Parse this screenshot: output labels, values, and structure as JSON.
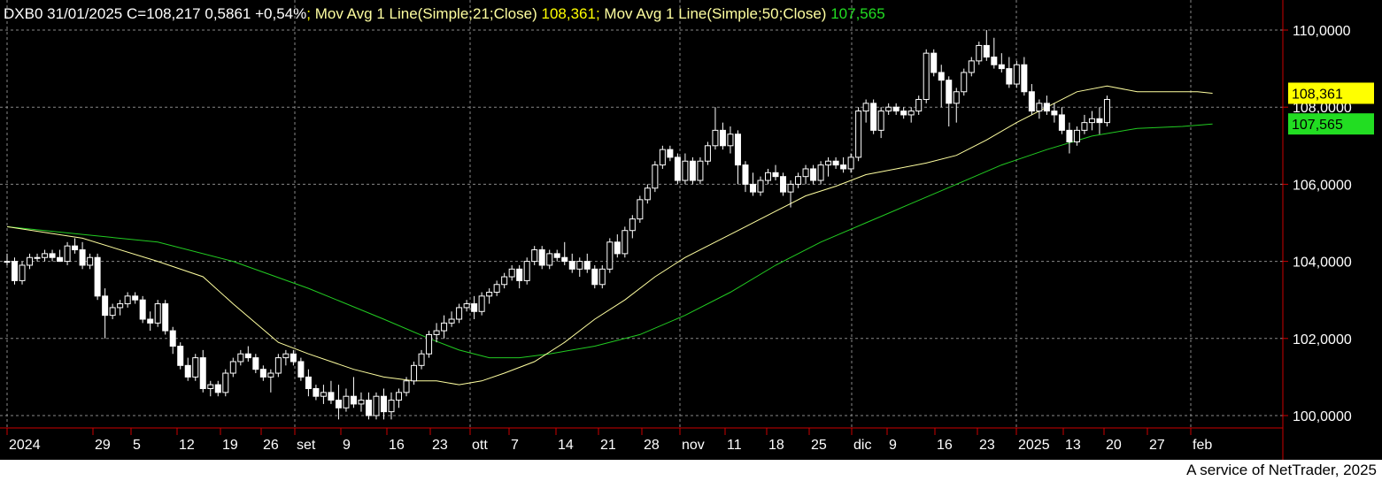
{
  "header": {
    "symbol": "DXB0",
    "date": "31/01/2025",
    "close_text": "C=108,217",
    "change": "0,5861",
    "change_pct": "+0,54%",
    "separator": ";",
    "ma21_label": "Mov Avg 1 Line(Simple;21;Close)",
    "ma21_value": "108,361",
    "ma50_label": "Mov Avg 1 Line(Simple;50;Close)",
    "ma50_value": "107,565"
  },
  "footer": {
    "text": "A service of NetTrader, 2025"
  },
  "colors": {
    "background": "#000000",
    "grid": "#888888",
    "axis": "#cc0000",
    "candle_up": "#ffffff",
    "candle_down": "#ffffff",
    "ma21": "#ffffa0",
    "ma50": "#22cc22",
    "ma21_label": "#ffff00",
    "ma50_label": "#22dd22"
  },
  "chart_data": {
    "type": "candlestick",
    "ylim": [
      99.6,
      110.3
    ],
    "y_ticks": [
      {
        "value": 100,
        "label": "100,0000"
      },
      {
        "value": 102,
        "label": "102,0000"
      },
      {
        "value": 104,
        "label": "104,0000"
      },
      {
        "value": 106,
        "label": "106,0000"
      },
      {
        "value": 108,
        "label": "108,0000"
      },
      {
        "value": 110,
        "label": "110,0000"
      }
    ],
    "x_ticks": [
      "2024",
      "29",
      "5",
      "12",
      "19",
      "26",
      "set",
      "9",
      "16",
      "23",
      "ott",
      "7",
      "14",
      "21",
      "28",
      "nov",
      "11",
      "18",
      "25",
      "dic",
      "9",
      "16",
      "23",
      "2025",
      "13",
      "20",
      "27",
      "feb"
    ],
    "grid": true,
    "last_values": {
      "ma21": "108,361",
      "ma50": "107,565"
    },
    "candles": [
      {
        "o": 104.0,
        "h": 104.2,
        "l": 103.9,
        "c": 104.0
      },
      {
        "o": 104.0,
        "h": 104.1,
        "l": 103.4,
        "c": 103.5
      },
      {
        "o": 103.5,
        "h": 104.0,
        "l": 103.4,
        "c": 103.9
      },
      {
        "o": 103.9,
        "h": 104.2,
        "l": 103.8,
        "c": 104.1
      },
      {
        "o": 104.1,
        "h": 104.2,
        "l": 104.0,
        "c": 104.1
      },
      {
        "o": 104.1,
        "h": 104.3,
        "l": 104.0,
        "c": 104.2
      },
      {
        "o": 104.2,
        "h": 104.3,
        "l": 104.0,
        "c": 104.1
      },
      {
        "o": 104.1,
        "h": 104.3,
        "l": 104.0,
        "c": 104.0
      },
      {
        "o": 104.0,
        "h": 104.5,
        "l": 103.9,
        "c": 104.4
      },
      {
        "o": 104.4,
        "h": 104.6,
        "l": 104.2,
        "c": 104.3
      },
      {
        "o": 104.3,
        "h": 104.5,
        "l": 103.8,
        "c": 103.9
      },
      {
        "o": 103.9,
        "h": 104.2,
        "l": 103.8,
        "c": 104.1
      },
      {
        "o": 104.1,
        "h": 104.2,
        "l": 103.0,
        "c": 103.1
      },
      {
        "o": 103.1,
        "h": 103.3,
        "l": 102.0,
        "c": 102.6
      },
      {
        "o": 102.6,
        "h": 102.9,
        "l": 102.5,
        "c": 102.8
      },
      {
        "o": 102.8,
        "h": 103.0,
        "l": 102.6,
        "c": 102.9
      },
      {
        "o": 102.9,
        "h": 103.2,
        "l": 102.8,
        "c": 103.1
      },
      {
        "o": 103.1,
        "h": 103.2,
        "l": 102.9,
        "c": 103.0
      },
      {
        "o": 103.0,
        "h": 103.1,
        "l": 102.4,
        "c": 102.5
      },
      {
        "o": 102.5,
        "h": 102.7,
        "l": 102.2,
        "c": 102.4
      },
      {
        "o": 102.4,
        "h": 103.0,
        "l": 102.3,
        "c": 102.9
      },
      {
        "o": 102.9,
        "h": 103.0,
        "l": 102.1,
        "c": 102.2
      },
      {
        "o": 102.2,
        "h": 102.3,
        "l": 101.6,
        "c": 101.8
      },
      {
        "o": 101.8,
        "h": 101.9,
        "l": 101.2,
        "c": 101.3
      },
      {
        "o": 101.3,
        "h": 101.5,
        "l": 100.9,
        "c": 101.0
      },
      {
        "o": 101.0,
        "h": 101.6,
        "l": 100.9,
        "c": 101.5
      },
      {
        "o": 101.5,
        "h": 101.7,
        "l": 100.6,
        "c": 100.7
      },
      {
        "o": 100.7,
        "h": 100.9,
        "l": 100.5,
        "c": 100.8
      },
      {
        "o": 100.8,
        "h": 100.9,
        "l": 100.5,
        "c": 100.6
      },
      {
        "o": 100.6,
        "h": 101.2,
        "l": 100.5,
        "c": 101.1
      },
      {
        "o": 101.1,
        "h": 101.5,
        "l": 101.0,
        "c": 101.4
      },
      {
        "o": 101.4,
        "h": 101.7,
        "l": 101.3,
        "c": 101.6
      },
      {
        "o": 101.6,
        "h": 101.8,
        "l": 101.4,
        "c": 101.5
      },
      {
        "o": 101.5,
        "h": 101.6,
        "l": 101.1,
        "c": 101.2
      },
      {
        "o": 101.2,
        "h": 101.3,
        "l": 100.9,
        "c": 101.0
      },
      {
        "o": 101.0,
        "h": 101.2,
        "l": 100.6,
        "c": 101.1
      },
      {
        "o": 101.1,
        "h": 101.6,
        "l": 101.0,
        "c": 101.5
      },
      {
        "o": 101.5,
        "h": 101.7,
        "l": 101.3,
        "c": 101.6
      },
      {
        "o": 101.6,
        "h": 101.7,
        "l": 101.3,
        "c": 101.4
      },
      {
        "o": 101.4,
        "h": 101.5,
        "l": 100.9,
        "c": 101.0
      },
      {
        "o": 101.0,
        "h": 101.2,
        "l": 100.5,
        "c": 100.7
      },
      {
        "o": 100.7,
        "h": 100.8,
        "l": 100.4,
        "c": 100.5
      },
      {
        "o": 100.5,
        "h": 100.8,
        "l": 100.3,
        "c": 100.6
      },
      {
        "o": 100.6,
        "h": 100.9,
        "l": 100.3,
        "c": 100.4
      },
      {
        "o": 100.4,
        "h": 100.8,
        "l": 99.9,
        "c": 100.2
      },
      {
        "o": 100.2,
        "h": 100.7,
        "l": 100.1,
        "c": 100.5
      },
      {
        "o": 100.5,
        "h": 101.0,
        "l": 100.2,
        "c": 100.3
      },
      {
        "o": 100.3,
        "h": 100.6,
        "l": 100.1,
        "c": 100.4
      },
      {
        "o": 100.4,
        "h": 100.6,
        "l": 99.9,
        "c": 100.0
      },
      {
        "o": 100.0,
        "h": 100.6,
        "l": 99.9,
        "c": 100.5
      },
      {
        "o": 100.5,
        "h": 100.7,
        "l": 99.9,
        "c": 100.1
      },
      {
        "o": 100.1,
        "h": 100.6,
        "l": 99.9,
        "c": 100.4
      },
      {
        "o": 100.4,
        "h": 100.7,
        "l": 100.2,
        "c": 100.6
      },
      {
        "o": 100.6,
        "h": 101.0,
        "l": 100.5,
        "c": 100.9
      },
      {
        "o": 100.9,
        "h": 101.4,
        "l": 100.8,
        "c": 101.3
      },
      {
        "o": 101.3,
        "h": 101.7,
        "l": 101.2,
        "c": 101.6
      },
      {
        "o": 101.6,
        "h": 102.2,
        "l": 101.5,
        "c": 102.1
      },
      {
        "o": 102.1,
        "h": 102.4,
        "l": 101.9,
        "c": 102.2
      },
      {
        "o": 102.2,
        "h": 102.6,
        "l": 102.0,
        "c": 102.4
      },
      {
        "o": 102.4,
        "h": 102.7,
        "l": 102.3,
        "c": 102.5
      },
      {
        "o": 102.5,
        "h": 102.9,
        "l": 102.4,
        "c": 102.8
      },
      {
        "o": 102.8,
        "h": 103.0,
        "l": 102.7,
        "c": 102.9
      },
      {
        "o": 102.9,
        "h": 103.1,
        "l": 102.5,
        "c": 102.7
      },
      {
        "o": 102.7,
        "h": 103.2,
        "l": 102.6,
        "c": 103.1
      },
      {
        "o": 103.1,
        "h": 103.3,
        "l": 102.9,
        "c": 103.2
      },
      {
        "o": 103.2,
        "h": 103.5,
        "l": 103.1,
        "c": 103.4
      },
      {
        "o": 103.4,
        "h": 103.7,
        "l": 103.3,
        "c": 103.6
      },
      {
        "o": 103.6,
        "h": 103.9,
        "l": 103.5,
        "c": 103.8
      },
      {
        "o": 103.8,
        "h": 103.9,
        "l": 103.3,
        "c": 103.5
      },
      {
        "o": 103.5,
        "h": 104.1,
        "l": 103.4,
        "c": 104.0
      },
      {
        "o": 104.0,
        "h": 104.4,
        "l": 103.9,
        "c": 104.3
      },
      {
        "o": 104.3,
        "h": 104.4,
        "l": 103.8,
        "c": 103.9
      },
      {
        "o": 103.9,
        "h": 104.3,
        "l": 103.8,
        "c": 104.2
      },
      {
        "o": 104.2,
        "h": 104.3,
        "l": 104.0,
        "c": 104.1
      },
      {
        "o": 104.1,
        "h": 104.5,
        "l": 103.9,
        "c": 104.0
      },
      {
        "o": 104.0,
        "h": 104.2,
        "l": 103.7,
        "c": 103.8
      },
      {
        "o": 103.8,
        "h": 104.1,
        "l": 103.6,
        "c": 104.0
      },
      {
        "o": 104.0,
        "h": 104.2,
        "l": 103.7,
        "c": 103.8
      },
      {
        "o": 103.8,
        "h": 103.9,
        "l": 103.3,
        "c": 103.4
      },
      {
        "o": 103.4,
        "h": 103.9,
        "l": 103.3,
        "c": 103.8
      },
      {
        "o": 103.8,
        "h": 104.6,
        "l": 103.7,
        "c": 104.5
      },
      {
        "o": 104.5,
        "h": 104.7,
        "l": 104.1,
        "c": 104.2
      },
      {
        "o": 104.2,
        "h": 104.9,
        "l": 104.1,
        "c": 104.8
      },
      {
        "o": 104.8,
        "h": 105.2,
        "l": 104.6,
        "c": 105.1
      },
      {
        "o": 105.1,
        "h": 105.7,
        "l": 105.0,
        "c": 105.6
      },
      {
        "o": 105.6,
        "h": 106.0,
        "l": 105.5,
        "c": 105.9
      },
      {
        "o": 105.9,
        "h": 106.6,
        "l": 105.8,
        "c": 106.5
      },
      {
        "o": 106.5,
        "h": 107.0,
        "l": 106.4,
        "c": 106.9
      },
      {
        "o": 106.9,
        "h": 107.0,
        "l": 106.6,
        "c": 106.7
      },
      {
        "o": 106.7,
        "h": 106.8,
        "l": 106.0,
        "c": 106.1
      },
      {
        "o": 106.1,
        "h": 106.8,
        "l": 106.0,
        "c": 106.6
      },
      {
        "o": 106.6,
        "h": 106.7,
        "l": 106.0,
        "c": 106.1
      },
      {
        "o": 106.1,
        "h": 106.7,
        "l": 106.0,
        "c": 106.6
      },
      {
        "o": 106.6,
        "h": 107.1,
        "l": 106.5,
        "c": 107.0
      },
      {
        "o": 107.0,
        "h": 108.0,
        "l": 106.9,
        "c": 107.4
      },
      {
        "o": 107.4,
        "h": 107.6,
        "l": 106.9,
        "c": 107.0
      },
      {
        "o": 107.0,
        "h": 107.5,
        "l": 106.8,
        "c": 107.3
      },
      {
        "o": 107.3,
        "h": 107.4,
        "l": 106.0,
        "c": 106.5
      },
      {
        "o": 106.5,
        "h": 106.6,
        "l": 105.8,
        "c": 106.0
      },
      {
        "o": 106.0,
        "h": 106.3,
        "l": 105.7,
        "c": 105.8
      },
      {
        "o": 105.8,
        "h": 106.2,
        "l": 105.7,
        "c": 106.1
      },
      {
        "o": 106.1,
        "h": 106.4,
        "l": 106.0,
        "c": 106.3
      },
      {
        "o": 106.3,
        "h": 106.5,
        "l": 106.1,
        "c": 106.2
      },
      {
        "o": 106.2,
        "h": 106.3,
        "l": 105.7,
        "c": 105.8
      },
      {
        "o": 105.8,
        "h": 106.1,
        "l": 105.4,
        "c": 106.0
      },
      {
        "o": 106.0,
        "h": 106.3,
        "l": 105.9,
        "c": 106.2
      },
      {
        "o": 106.2,
        "h": 106.5,
        "l": 106.0,
        "c": 106.4
      },
      {
        "o": 106.4,
        "h": 106.5,
        "l": 106.0,
        "c": 106.1
      },
      {
        "o": 106.1,
        "h": 106.6,
        "l": 106.0,
        "c": 106.5
      },
      {
        "o": 106.5,
        "h": 106.7,
        "l": 106.2,
        "c": 106.6
      },
      {
        "o": 106.6,
        "h": 106.7,
        "l": 106.4,
        "c": 106.5
      },
      {
        "o": 106.5,
        "h": 106.7,
        "l": 106.3,
        "c": 106.4
      },
      {
        "o": 106.4,
        "h": 106.8,
        "l": 106.3,
        "c": 106.7
      },
      {
        "o": 106.7,
        "h": 108.0,
        "l": 106.6,
        "c": 107.9
      },
      {
        "o": 107.9,
        "h": 108.2,
        "l": 107.6,
        "c": 108.1
      },
      {
        "o": 108.1,
        "h": 108.2,
        "l": 107.3,
        "c": 107.4
      },
      {
        "o": 107.4,
        "h": 108.0,
        "l": 107.2,
        "c": 107.9
      },
      {
        "o": 107.9,
        "h": 108.1,
        "l": 107.8,
        "c": 108.0
      },
      {
        "o": 108.0,
        "h": 108.1,
        "l": 107.8,
        "c": 107.9
      },
      {
        "o": 107.9,
        "h": 108.0,
        "l": 107.7,
        "c": 107.8
      },
      {
        "o": 107.8,
        "h": 108.0,
        "l": 107.6,
        "c": 107.9
      },
      {
        "o": 107.9,
        "h": 108.3,
        "l": 107.8,
        "c": 108.2
      },
      {
        "o": 108.2,
        "h": 109.5,
        "l": 108.1,
        "c": 109.4
      },
      {
        "o": 109.4,
        "h": 109.5,
        "l": 108.8,
        "c": 108.9
      },
      {
        "o": 108.9,
        "h": 109.1,
        "l": 108.0,
        "c": 108.7
      },
      {
        "o": 108.7,
        "h": 108.8,
        "l": 107.5,
        "c": 108.1
      },
      {
        "o": 108.1,
        "h": 108.5,
        "l": 107.6,
        "c": 108.4
      },
      {
        "o": 108.4,
        "h": 109.0,
        "l": 108.3,
        "c": 108.9
      },
      {
        "o": 108.9,
        "h": 109.3,
        "l": 108.8,
        "c": 109.2
      },
      {
        "o": 109.2,
        "h": 109.7,
        "l": 109.1,
        "c": 109.6
      },
      {
        "o": 109.6,
        "h": 110.0,
        "l": 109.2,
        "c": 109.3
      },
      {
        "o": 109.3,
        "h": 109.8,
        "l": 109.0,
        "c": 109.1
      },
      {
        "o": 109.1,
        "h": 109.4,
        "l": 108.9,
        "c": 109.0
      },
      {
        "o": 109.0,
        "h": 109.3,
        "l": 108.5,
        "c": 108.6
      },
      {
        "o": 108.6,
        "h": 109.2,
        "l": 108.5,
        "c": 109.1
      },
      {
        "o": 109.1,
        "h": 109.3,
        "l": 108.3,
        "c": 108.4
      },
      {
        "o": 108.4,
        "h": 108.6,
        "l": 107.8,
        "c": 107.9
      },
      {
        "o": 107.9,
        "h": 108.2,
        "l": 107.7,
        "c": 108.1
      },
      {
        "o": 108.1,
        "h": 108.3,
        "l": 107.8,
        "c": 107.9
      },
      {
        "o": 107.9,
        "h": 108.1,
        "l": 107.6,
        "c": 107.8
      },
      {
        "o": 107.8,
        "h": 108.0,
        "l": 107.3,
        "c": 107.4
      },
      {
        "o": 107.4,
        "h": 107.6,
        "l": 106.8,
        "c": 107.1
      },
      {
        "o": 107.1,
        "h": 107.5,
        "l": 107.0,
        "c": 107.4
      },
      {
        "o": 107.4,
        "h": 107.8,
        "l": 107.3,
        "c": 107.6
      },
      {
        "o": 107.6,
        "h": 107.9,
        "l": 107.4,
        "c": 107.7
      },
      {
        "o": 107.7,
        "h": 108.0,
        "l": 107.3,
        "c": 107.6
      },
      {
        "o": 107.6,
        "h": 108.3,
        "l": 107.5,
        "c": 108.2
      }
    ],
    "ma21": [
      [
        0,
        104.9
      ],
      [
        10,
        104.6
      ],
      [
        20,
        104.0
      ],
      [
        26,
        103.6
      ],
      [
        30,
        102.9
      ],
      [
        36,
        101.9
      ],
      [
        40,
        101.6
      ],
      [
        46,
        101.2
      ],
      [
        50,
        101.0
      ],
      [
        54,
        100.9
      ],
      [
        57,
        100.9
      ],
      [
        60,
        100.8
      ],
      [
        63,
        100.9
      ],
      [
        66,
        101.1
      ],
      [
        70,
        101.4
      ],
      [
        74,
        101.9
      ],
      [
        78,
        102.5
      ],
      [
        82,
        103.0
      ],
      [
        86,
        103.6
      ],
      [
        90,
        104.1
      ],
      [
        94,
        104.5
      ],
      [
        98,
        104.9
      ],
      [
        102,
        105.3
      ],
      [
        106,
        105.7
      ],
      [
        110,
        105.95
      ],
      [
        114,
        106.25
      ],
      [
        118,
        106.4
      ],
      [
        122,
        106.55
      ],
      [
        126,
        106.75
      ],
      [
        130,
        107.15
      ],
      [
        134,
        107.6
      ],
      [
        138,
        108.0
      ],
      [
        142,
        108.4
      ],
      [
        146,
        108.55
      ],
      [
        150,
        108.4
      ],
      [
        154,
        108.4
      ],
      [
        158,
        108.4
      ],
      [
        160,
        108.36
      ]
    ],
    "ma50": [
      [
        0,
        104.9
      ],
      [
        10,
        104.7
      ],
      [
        20,
        104.5
      ],
      [
        30,
        104.0
      ],
      [
        40,
        103.3
      ],
      [
        50,
        102.5
      ],
      [
        56,
        102.0
      ],
      [
        60,
        101.7
      ],
      [
        64,
        101.5
      ],
      [
        68,
        101.5
      ],
      [
        72,
        101.6
      ],
      [
        78,
        101.8
      ],
      [
        84,
        102.1
      ],
      [
        90,
        102.6
      ],
      [
        96,
        103.2
      ],
      [
        102,
        103.9
      ],
      [
        108,
        104.5
      ],
      [
        114,
        105.0
      ],
      [
        120,
        105.5
      ],
      [
        126,
        106.0
      ],
      [
        132,
        106.5
      ],
      [
        138,
        106.9
      ],
      [
        144,
        107.25
      ],
      [
        150,
        107.45
      ],
      [
        156,
        107.5
      ],
      [
        160,
        107.565
      ]
    ]
  }
}
